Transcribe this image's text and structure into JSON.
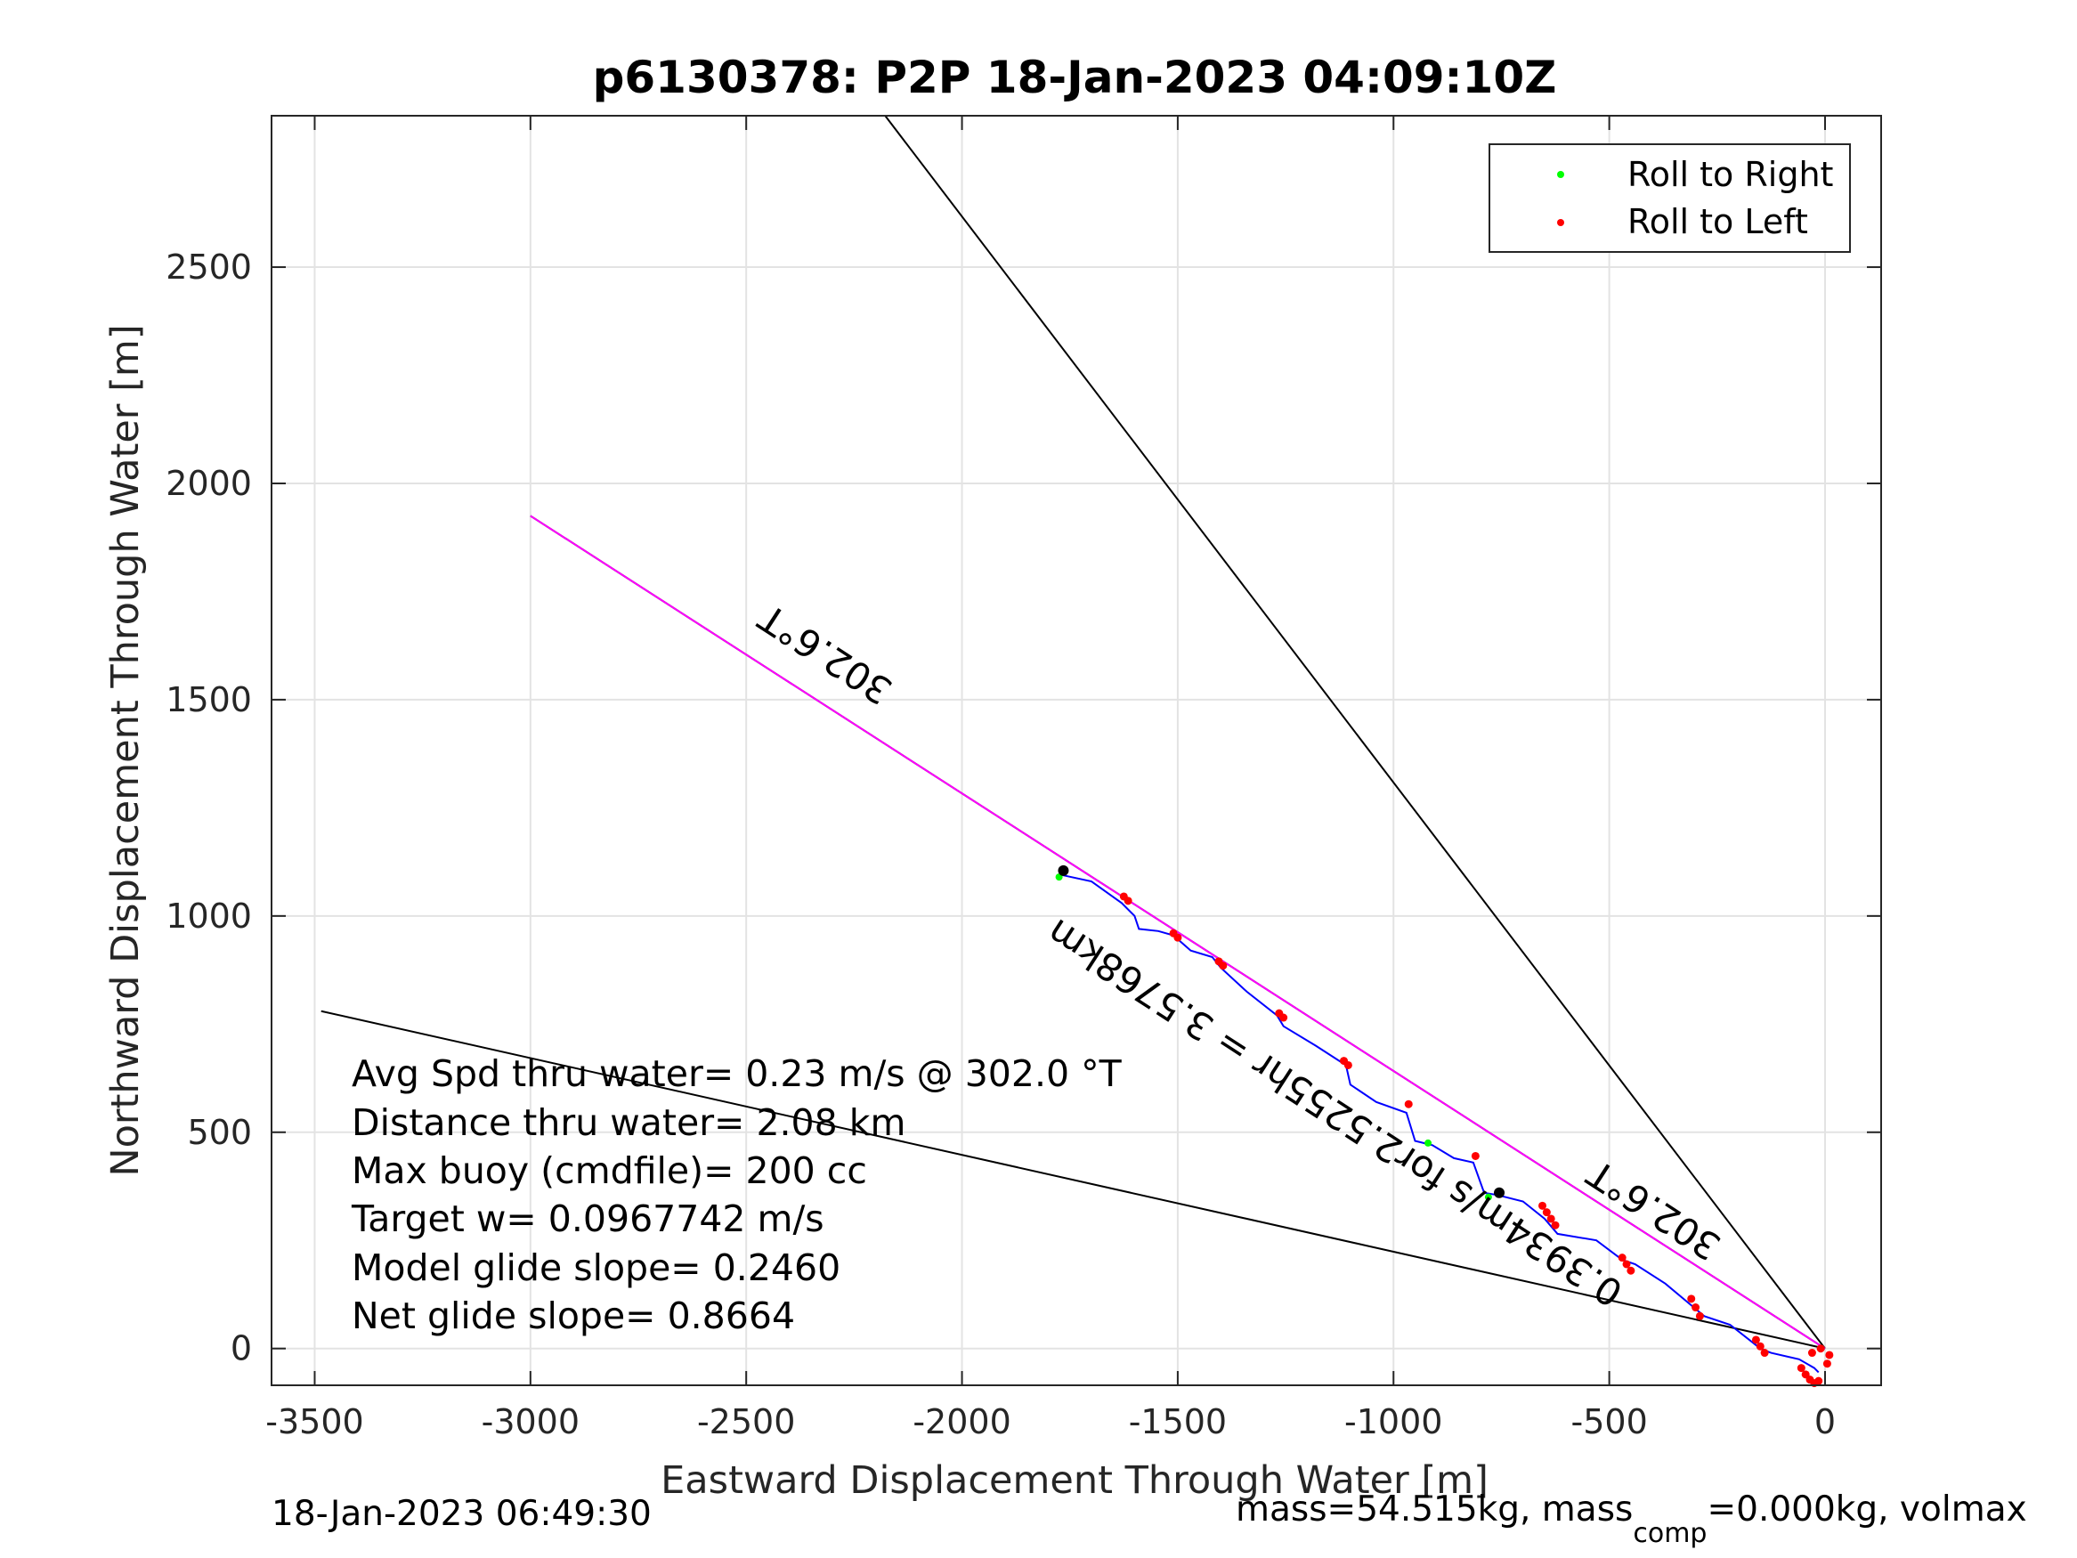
{
  "chart_data": {
    "type": "line",
    "title": "p6130378: P2P 18-Jan-2023 04:09:10Z",
    "xlabel": "Eastward Displacement Through Water [m]",
    "ylabel": "Northward Displacement Through Water [m]",
    "xlim": [
      -3600,
      130
    ],
    "ylim": [
      -85,
      2850
    ],
    "xticks": [
      -3500,
      -3000,
      -2500,
      -2000,
      -1500,
      -1000,
      -500,
      0
    ],
    "yticks": [
      0,
      500,
      1000,
      1500,
      2000,
      2500
    ],
    "grid": true,
    "legend_position": "top-right",
    "legend": [
      {
        "label": "Roll to Right",
        "color": "#00ff00"
      },
      {
        "label": "Roll to Left",
        "color": "#ff0000"
      }
    ],
    "reference_lines": [
      {
        "x": [
          0,
          -2178
        ],
        "y": [
          0,
          2850
        ],
        "color": "#000000"
      },
      {
        "x": [
          0,
          -3485
        ],
        "y": [
          0,
          780
        ],
        "color": "#000000"
      },
      {
        "x": [
          0,
          -3000
        ],
        "y": [
          0,
          1925
        ],
        "color": "#000000"
      },
      {
        "x": [
          0,
          -3000
        ],
        "y": [
          0,
          1925
        ],
        "color": "#ff00ff"
      }
    ],
    "track": {
      "name": "track",
      "color": "#0000ff",
      "x": [
        -1770,
        -1700,
        -1630,
        -1600,
        -1590,
        -1545,
        -1510,
        -1470,
        -1420,
        -1400,
        -1340,
        -1270,
        -1255,
        -1180,
        -1110,
        -1100,
        -1040,
        -970,
        -950,
        -910,
        -860,
        -815,
        -790,
        -760,
        -700,
        -650,
        -620,
        -530,
        -470,
        -440,
        -370,
        -310,
        -280,
        -220,
        -150,
        -125,
        -60,
        -25,
        -15
      ],
      "y": [
        1095,
        1080,
        1030,
        1000,
        970,
        965,
        955,
        920,
        905,
        880,
        825,
        770,
        745,
        700,
        655,
        610,
        570,
        545,
        480,
        470,
        440,
        430,
        360,
        355,
        340,
        300,
        265,
        250,
        205,
        195,
        150,
        100,
        75,
        55,
        0,
        -10,
        -25,
        -45,
        -55
      ]
    },
    "roll_left_points": {
      "x": [
        -1625,
        -1615,
        -1510,
        -1500,
        -1405,
        -1395,
        -1265,
        -1255,
        -1115,
        -1105,
        -965,
        -810,
        -655,
        -645,
        -635,
        -625,
        -470,
        -460,
        -450,
        -310,
        -300,
        -290,
        -160,
        -150,
        -140,
        -55,
        -45,
        -35,
        -25,
        -15,
        5,
        10,
        -10,
        -30
      ],
      "y": [
        1045,
        1035,
        960,
        950,
        895,
        885,
        775,
        765,
        665,
        655,
        565,
        445,
        330,
        315,
        300,
        285,
        210,
        195,
        180,
        115,
        95,
        75,
        20,
        5,
        -10,
        -45,
        -60,
        -72,
        -80,
        -75,
        -35,
        -15,
        0,
        -10
      ]
    },
    "roll_right_points": {
      "x": [
        -1775,
        -920,
        -780
      ],
      "y": [
        1090,
        475,
        350
      ]
    },
    "markers_black": {
      "x": [
        -1765,
        -755
      ],
      "y": [
        1105,
        360
      ]
    },
    "annotations": [
      {
        "text": "302.6°T",
        "x": -2300,
        "y": 1630,
        "rotation": 213
      },
      {
        "text": "302.6°T",
        "x": -380,
        "y": 345,
        "rotation": 213
      },
      {
        "text": "0.3934m/s for2.5255hr = 3.5768km",
        "x": -1120,
        "y": 570,
        "rotation": 213
      }
    ],
    "stats": [
      "Avg Spd thru water=  0.23 m/s @ 302.0 °T",
      "Distance thru water=  2.08 km",
      "Max buoy (cmdfile)= 200 cc",
      "Target w= 0.0967742 m/s",
      "Model glide slope= 0.2460",
      "Net glide slope= 0.8664"
    ]
  },
  "footer": {
    "timestamp": "18-Jan-2023 06:49:30",
    "mass_prefix": "mass=54.515kg, mass",
    "mass_sub": "comp",
    "mass_suffix": "=0.000kg, volmax"
  }
}
